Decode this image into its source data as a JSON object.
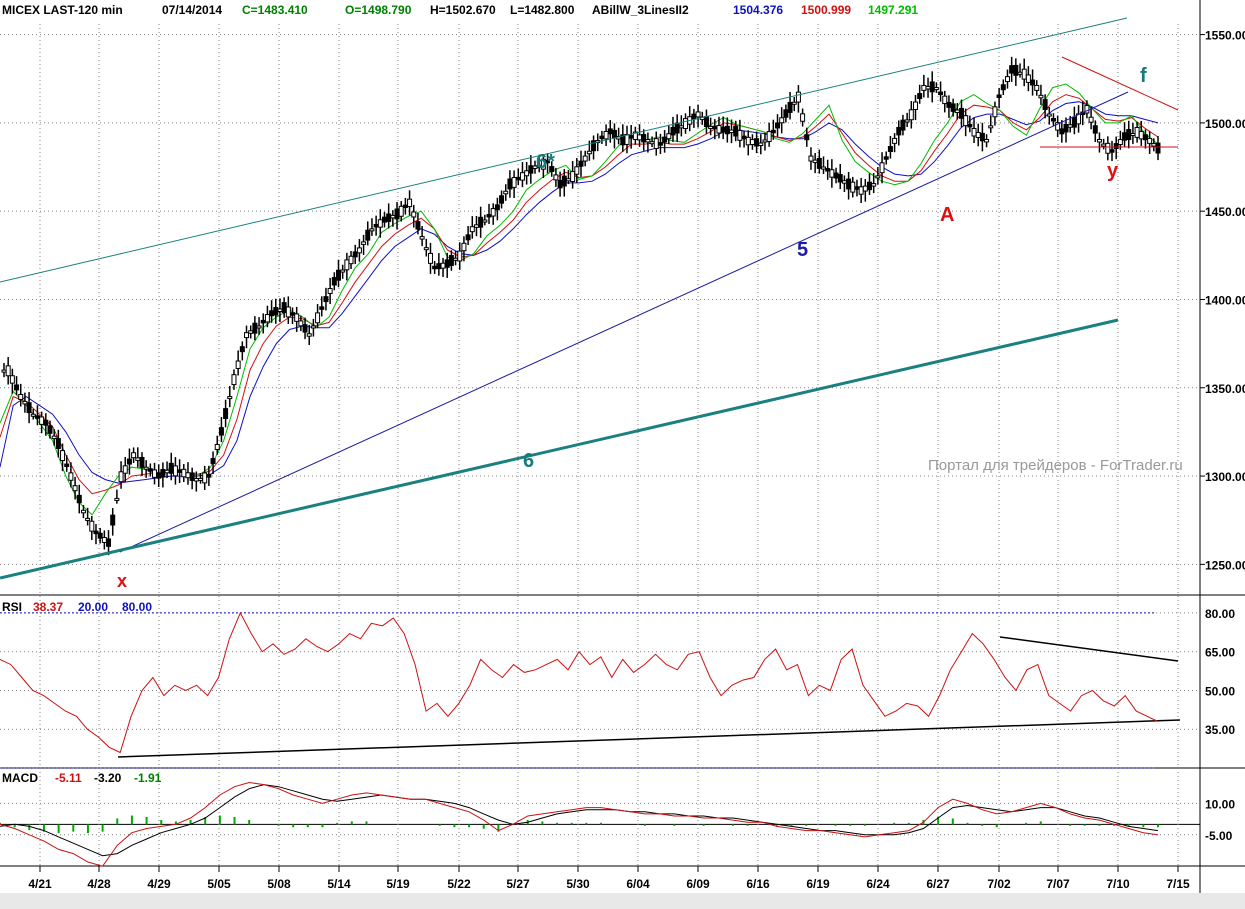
{
  "header": {
    "symbol": "MICEX LAST-120 min",
    "date": "07/14/2014",
    "close": "C=1483.410",
    "open": "O=1498.790",
    "high": "H=1502.670",
    "low": "L=1482.800",
    "indicator": "ABillW_3LinesII2",
    "ind_blue": "1504.376",
    "ind_red": "1500.999",
    "ind_green": "1497.291"
  },
  "rsi_header": {
    "label": "RSI",
    "value": "38.37",
    "lower": "20.00",
    "upper": "80.00"
  },
  "macd_header": {
    "label": "MACD",
    "v1": "-5.11",
    "v2": "-3.20",
    "v3": "-1.91"
  },
  "watermark": "Портал для трейдеров - ForTrader.ru",
  "colors": {
    "price": "#000000",
    "green_line": "#00bb00",
    "red_line": "#d01010",
    "blue_line": "#1010c0",
    "teal": "#008080",
    "channel": "#1a8080",
    "label_red": "#dd1111",
    "rsi": "#cc1111"
  },
  "annotations": [
    {
      "text": "6*",
      "color": "#1a7a7a"
    },
    {
      "text": "5",
      "color": "#1c1ca0"
    },
    {
      "text": "6",
      "color": "#1a7a7a"
    },
    {
      "text": "x",
      "color": "#dd1111"
    },
    {
      "text": "A",
      "color": "#dd1111"
    },
    {
      "text": "y",
      "color": "#dd1111"
    },
    {
      "text": "f",
      "color": "#1a7a7a"
    }
  ],
  "chart_data": [
    {
      "type": "candlestick",
      "panel": "price",
      "y_ticks": [
        "1550.00",
        "1500.00",
        "1450.00",
        "1400.00",
        "1350.00",
        "1300.00",
        "1250.00"
      ],
      "ylim": [
        1240,
        1556
      ],
      "x_ticks": [
        "4/21",
        "4/28",
        "4/29",
        "5/05",
        "5/08",
        "5/14",
        "5/19",
        "5/22",
        "5/27",
        "5/30",
        "6/04",
        "6/09",
        "6/16",
        "6/19",
        "6/24",
        "6/27",
        "7/02",
        "7/07",
        "7/10",
        "7/15"
      ],
      "close_path": [
        1360,
        1345,
        1335,
        1330,
        1318,
        1300,
        1280,
        1268,
        1262,
        1300,
        1312,
        1305,
        1300,
        1304,
        1302,
        1298,
        1300,
        1325,
        1355,
        1380,
        1385,
        1392,
        1395,
        1390,
        1380,
        1395,
        1410,
        1420,
        1428,
        1440,
        1445,
        1448,
        1455,
        1435,
        1418,
        1420,
        1425,
        1440,
        1445,
        1452,
        1465,
        1470,
        1475,
        1478,
        1465,
        1470,
        1480,
        1490,
        1495,
        1490,
        1493,
        1490,
        1488,
        1495,
        1500,
        1505,
        1498,
        1496,
        1495,
        1490,
        1488,
        1495,
        1505,
        1515,
        1480,
        1475,
        1470,
        1465,
        1462,
        1465,
        1480,
        1495,
        1505,
        1520,
        1520,
        1510,
        1505,
        1495,
        1490,
        1515,
        1530,
        1528,
        1520,
        1505,
        1495,
        1500,
        1508,
        1490,
        1484,
        1492,
        1495,
        1490,
        1483
      ],
      "indicator_lines": {
        "green": [
          1330,
          1348,
          1340,
          1330,
          1320,
          1300,
          1285,
          1278,
          1290,
          1300,
          1305,
          1304,
          1300,
          1305,
          1302,
          1300,
          1305,
          1320,
          1345,
          1372,
          1384,
          1390,
          1394,
          1390,
          1384,
          1390,
          1405,
          1418,
          1426,
          1438,
          1443,
          1447,
          1450,
          1440,
          1424,
          1422,
          1426,
          1436,
          1442,
          1450,
          1462,
          1468,
          1473,
          1476,
          1468,
          1470,
          1478,
          1487,
          1492,
          1490,
          1492,
          1490,
          1489,
          1494,
          1499,
          1503,
          1499,
          1497,
          1495,
          1491,
          1489,
          1494,
          1502,
          1510,
          1490,
          1478,
          1472,
          1467,
          1465,
          1467,
          1477,
          1490,
          1500,
          1512,
          1516,
          1511,
          1507,
          1498,
          1493,
          1508,
          1520,
          1522,
          1517,
          1508,
          1500,
          1500,
          1504,
          1494,
          1488
        ],
        "red": [
          1322,
          1345,
          1342,
          1335,
          1328,
          1312,
          1298,
          1290,
          1292,
          1295,
          1300,
          1301,
          1302,
          1303,
          1302,
          1301,
          1303,
          1312,
          1332,
          1360,
          1375,
          1385,
          1390,
          1389,
          1385,
          1387,
          1398,
          1410,
          1420,
          1430,
          1437,
          1442,
          1446,
          1440,
          1428,
          1424,
          1425,
          1432,
          1438,
          1445,
          1455,
          1462,
          1468,
          1472,
          1469,
          1470,
          1475,
          1482,
          1488,
          1488,
          1489,
          1488,
          1488,
          1491,
          1495,
          1500,
          1499,
          1497,
          1495,
          1492,
          1490,
          1492,
          1498,
          1505,
          1494,
          1483,
          1476,
          1470,
          1467,
          1467,
          1473,
          1484,
          1494,
          1505,
          1510,
          1509,
          1507,
          1500,
          1496,
          1503,
          1512,
          1516,
          1514,
          1508,
          1502,
          1501,
          1503,
          1497,
          1492
        ],
        "blue": [
          1305,
          1340,
          1345,
          1340,
          1335,
          1325,
          1312,
          1302,
          1298,
          1296,
          1297,
          1298,
          1299,
          1300,
          1300,
          1300,
          1301,
          1306,
          1320,
          1345,
          1362,
          1375,
          1383,
          1385,
          1384,
          1384,
          1392,
          1402,
          1412,
          1422,
          1430,
          1435,
          1440,
          1437,
          1430,
          1426,
          1425,
          1428,
          1433,
          1440,
          1448,
          1455,
          1461,
          1466,
          1466,
          1467,
          1471,
          1477,
          1482,
          1484,
          1486,
          1486,
          1486,
          1488,
          1491,
          1495,
          1496,
          1495,
          1494,
          1492,
          1491,
          1491,
          1495,
          1500,
          1496,
          1488,
          1481,
          1475,
          1471,
          1470,
          1471,
          1478,
          1487,
          1497,
          1503,
          1505,
          1505,
          1502,
          1499,
          1501,
          1507,
          1511,
          1512,
          1509,
          1505,
          1504,
          1504,
          1502,
          1500
        ]
      },
      "trendlines": [
        "6*",
        "5",
        "6",
        "support 1483",
        "f wedge"
      ]
    },
    {
      "type": "line",
      "panel": "RSI",
      "name": "RSI",
      "y_ticks": [
        "80.00",
        "65.00",
        "50.00",
        "35.00"
      ],
      "ylim": [
        20,
        85
      ],
      "levels": [
        20,
        80
      ],
      "values": [
        62,
        60,
        55,
        50,
        48,
        45,
        42,
        40,
        35,
        32,
        28,
        26,
        40,
        50,
        55,
        48,
        52,
        50,
        52,
        48,
        55,
        70,
        80,
        72,
        65,
        68,
        64,
        66,
        70,
        67,
        65,
        68,
        72,
        70,
        76,
        75,
        78,
        72,
        60,
        42,
        45,
        40,
        45,
        52,
        62,
        58,
        55,
        60,
        57,
        58,
        60,
        62,
        58,
        65,
        60,
        63,
        55,
        62,
        57,
        60,
        64,
        60,
        58,
        64,
        65,
        55,
        48,
        52,
        54,
        55,
        62,
        66,
        58,
        60,
        48,
        52,
        50,
        62,
        66,
        52,
        46,
        40,
        42,
        45,
        44,
        40,
        48,
        58,
        65,
        72,
        68,
        62,
        55,
        50,
        58,
        60,
        48,
        45,
        42,
        48,
        50,
        46,
        44,
        48,
        42,
        40,
        38
      ]
    },
    {
      "type": "line",
      "panel": "MACD",
      "name": "MACD",
      "y_ticks": [
        "10.00",
        "-5.00"
      ],
      "ylim": [
        -18,
        25
      ],
      "macd": [
        0,
        -2,
        -5,
        -8,
        -12,
        -14,
        -18,
        -20,
        -10,
        -4,
        -2,
        -1,
        0,
        3,
        8,
        14,
        18,
        20,
        19,
        17,
        14,
        12,
        10,
        12,
        14,
        15,
        14,
        13,
        12,
        12,
        10,
        8,
        6,
        2,
        -3,
        0,
        4,
        5,
        6,
        7,
        8,
        8,
        7,
        6,
        5,
        5,
        4,
        4,
        3,
        3,
        2,
        1,
        1,
        -1,
        -2,
        -3,
        -3,
        -4,
        -5,
        -6,
        -5,
        -4,
        -3,
        1,
        8,
        12,
        10,
        7,
        5,
        6,
        8,
        10,
        8,
        5,
        3,
        2,
        0,
        -2,
        -4,
        -5
      ],
      "signal": [
        -1,
        0,
        -1,
        -3,
        -6,
        -9,
        -12,
        -15,
        -14,
        -10,
        -7,
        -4,
        -2,
        0,
        3,
        8,
        13,
        17,
        19,
        18,
        16,
        14,
        12,
        11,
        12,
        13,
        14,
        13,
        12,
        12,
        11,
        10,
        8,
        5,
        2,
        0,
        1,
        3,
        5,
        6,
        7,
        7,
        7,
        6,
        6,
        5,
        5,
        4,
        4,
        3,
        3,
        2,
        1,
        0,
        -1,
        -2,
        -3,
        -3,
        -4,
        -5,
        -5,
        -5,
        -4,
        -2,
        3,
        8,
        9,
        8,
        7,
        6,
        7,
        8,
        8,
        6,
        4,
        3,
        1,
        -1,
        -2,
        -3
      ]
    }
  ]
}
